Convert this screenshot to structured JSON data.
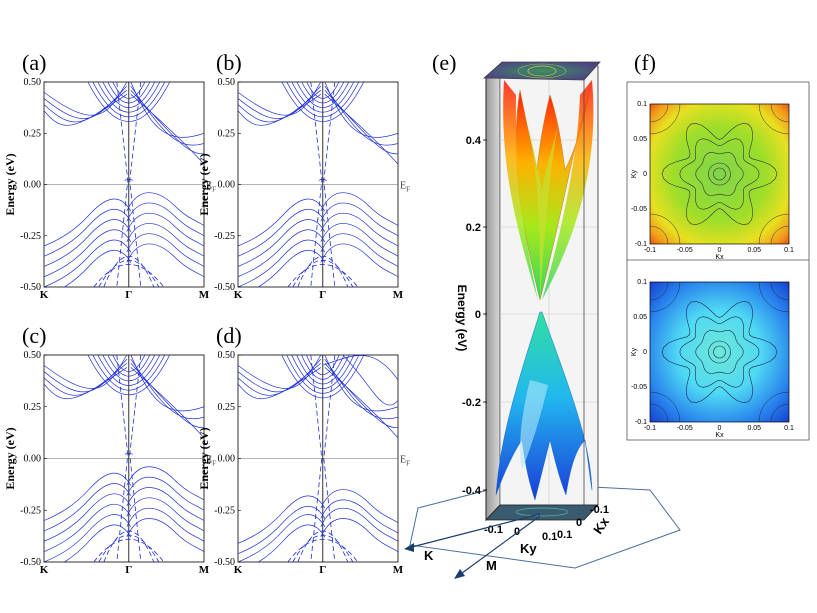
{
  "panels": {
    "a": {
      "label": "(a)"
    },
    "b": {
      "label": "(b)"
    },
    "c": {
      "label": "(c)"
    },
    "d": {
      "label": "(d)"
    },
    "e": {
      "label": "(e)"
    },
    "f": {
      "label": "(f)"
    }
  },
  "band_axes": {
    "ylabel": "Energy (eV)",
    "yticks": [
      "0.50",
      "0.25",
      "0.00",
      "-0.25",
      "-0.50"
    ],
    "xticks": [
      "K",
      "Γ",
      "M"
    ],
    "fermi_label": "E",
    "fermi_sub": "F"
  },
  "surface3d": {
    "zlabel": "Energy (eV)",
    "zticks": [
      "0.4",
      "0.2",
      "0",
      "-0.2",
      "-0.4"
    ],
    "ky_label": "Ky",
    "kx_label": "Kx",
    "ky_ticks": [
      "-0.1",
      "0",
      "0.1"
    ],
    "kx_ticks": [
      "0.1",
      "0",
      "-0.1"
    ],
    "k_label": "K",
    "m_label": "M"
  },
  "contour_maps": {
    "ylabel": "Ky",
    "xlabel": "Kx",
    "xticks": [
      "-0.1",
      "-0.05",
      "0",
      "0.05",
      "0.1"
    ],
    "yticks": [
      "0.1",
      "0.05",
      "0",
      "-0.05",
      "-0.1"
    ],
    "top_colors": [
      "#d62b10",
      "#f39a1a",
      "#d8e020",
      "#8ad82a",
      "#79d44a"
    ],
    "bottom_colors": [
      "#1438d6",
      "#2a86ee",
      "#46c8f4",
      "#4fe0f0",
      "#6ee8d8"
    ]
  }
}
